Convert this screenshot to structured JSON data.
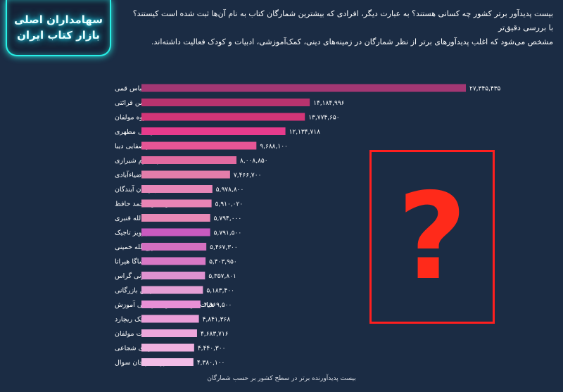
{
  "badge": {
    "line1": "سهامداران اصلی",
    "line2": "بازار کتاب ایران"
  },
  "intro": {
    "line1": "بیست پدیدآور برتر کشور چه کسانی هستند؟ به عبارت دیگر، افرادی که بیشترین شمارگان کتاب به نام آن‌ها ثبت شده است کیستند؟ با بررسی دقیق‌تر",
    "line2": "مشخص می‌شود که اغلب پدیدآورهای برتر از نظر شمارگان در زمینه‌های دینی، کمک‌آموزشی، ادبیات و کودک فعالیت داشته‌اند."
  },
  "mystery": {
    "symbol": "?"
  },
  "colors": {
    "background": "#1b2c44",
    "badge_glow": "#27f0e6",
    "question_red": "#ff1f1f",
    "bar_gradient": [
      "#a33773",
      "#b8336e",
      "#d23577",
      "#e63b8c",
      "#e75595",
      "#e26aa0",
      "#e37daa",
      "#e887b8",
      "#e884b5",
      "#e889b6",
      "#c95ac0",
      "#d46fc0",
      "#d878c6",
      "#df92d0",
      "#e59fd5",
      "#e890d6",
      "#e99ed8",
      "#eda6dc",
      "#f0b1e0",
      "#f2bde6"
    ]
  },
  "chart_data": {
    "type": "bar",
    "orientation": "horizontal",
    "categories": [
      "عباس قمی",
      "محسن قرائتی",
      "گروه مولفان",
      "مرتضی مطهری",
      "علی‌اکبر صفایی دیبا",
      "ناصر مکارم شیرازی",
      "سید محمد ضیاءآبادی",
      "دپارتمان آیندگان",
      "شمس‌الدین محمد حافظ",
      "عبدالله قنبری",
      "پرویز تاجیک",
      "روح‌الله خمینی",
      "شاگا هیراتا",
      "تونی گراس",
      "بهمن بازرگانی",
      "هیات مولفان کانون فرهنگی آموزش",
      "جک ریچارد",
      "هیات مولفان",
      "سید مهدی شجاعی",
      "گروه طراحان سوال"
    ],
    "values": [
      27345435,
      14184996,
      13774650,
      12134718,
      9688100,
      8008850,
      7466700,
      5978800,
      5910020,
      5794000,
      5791500,
      5467300,
      5403950,
      5357801,
      5183400,
      4969500,
      4841368,
      4683716,
      4440300,
      4380100
    ],
    "value_labels": [
      "۲۷,۳۴۵,۴۳۵",
      "۱۴,۱۸۴,۹۹۶",
      "۱۳,۷۷۴,۶۵۰",
      "۱۲,۱۳۴,۷۱۸",
      "۹,۶۸۸,۱۰۰",
      "۸,۰۰۸,۸۵۰",
      "۷,۴۶۶,۷۰۰",
      "۵,۹۷۸,۸۰۰",
      "۵,۹۱۰,۰۲۰",
      "۵,۷۹۴,۰۰۰",
      "۵,۷۹۱,۵۰۰",
      "۵,۴۶۷,۳۰۰",
      "۵,۴۰۳,۹۵۰",
      "۵,۳۵۷,۸۰۱",
      "۵,۱۸۳,۴۰۰",
      "۴,۹۶۹,۵۰۰",
      "۴,۸۴۱,۳۶۸",
      "۴,۶۸۳,۷۱۶",
      "۴,۴۴۰,۳۰۰",
      "۴,۳۸۰,۱۰۰"
    ],
    "title": "",
    "xlabel": "",
    "ylabel": "",
    "caption": "بیست پدیدآورنده برتر در سطح کشور بر حسب شمارگان",
    "xlim": [
      0,
      27345435
    ],
    "grid": false,
    "legend": "none"
  }
}
